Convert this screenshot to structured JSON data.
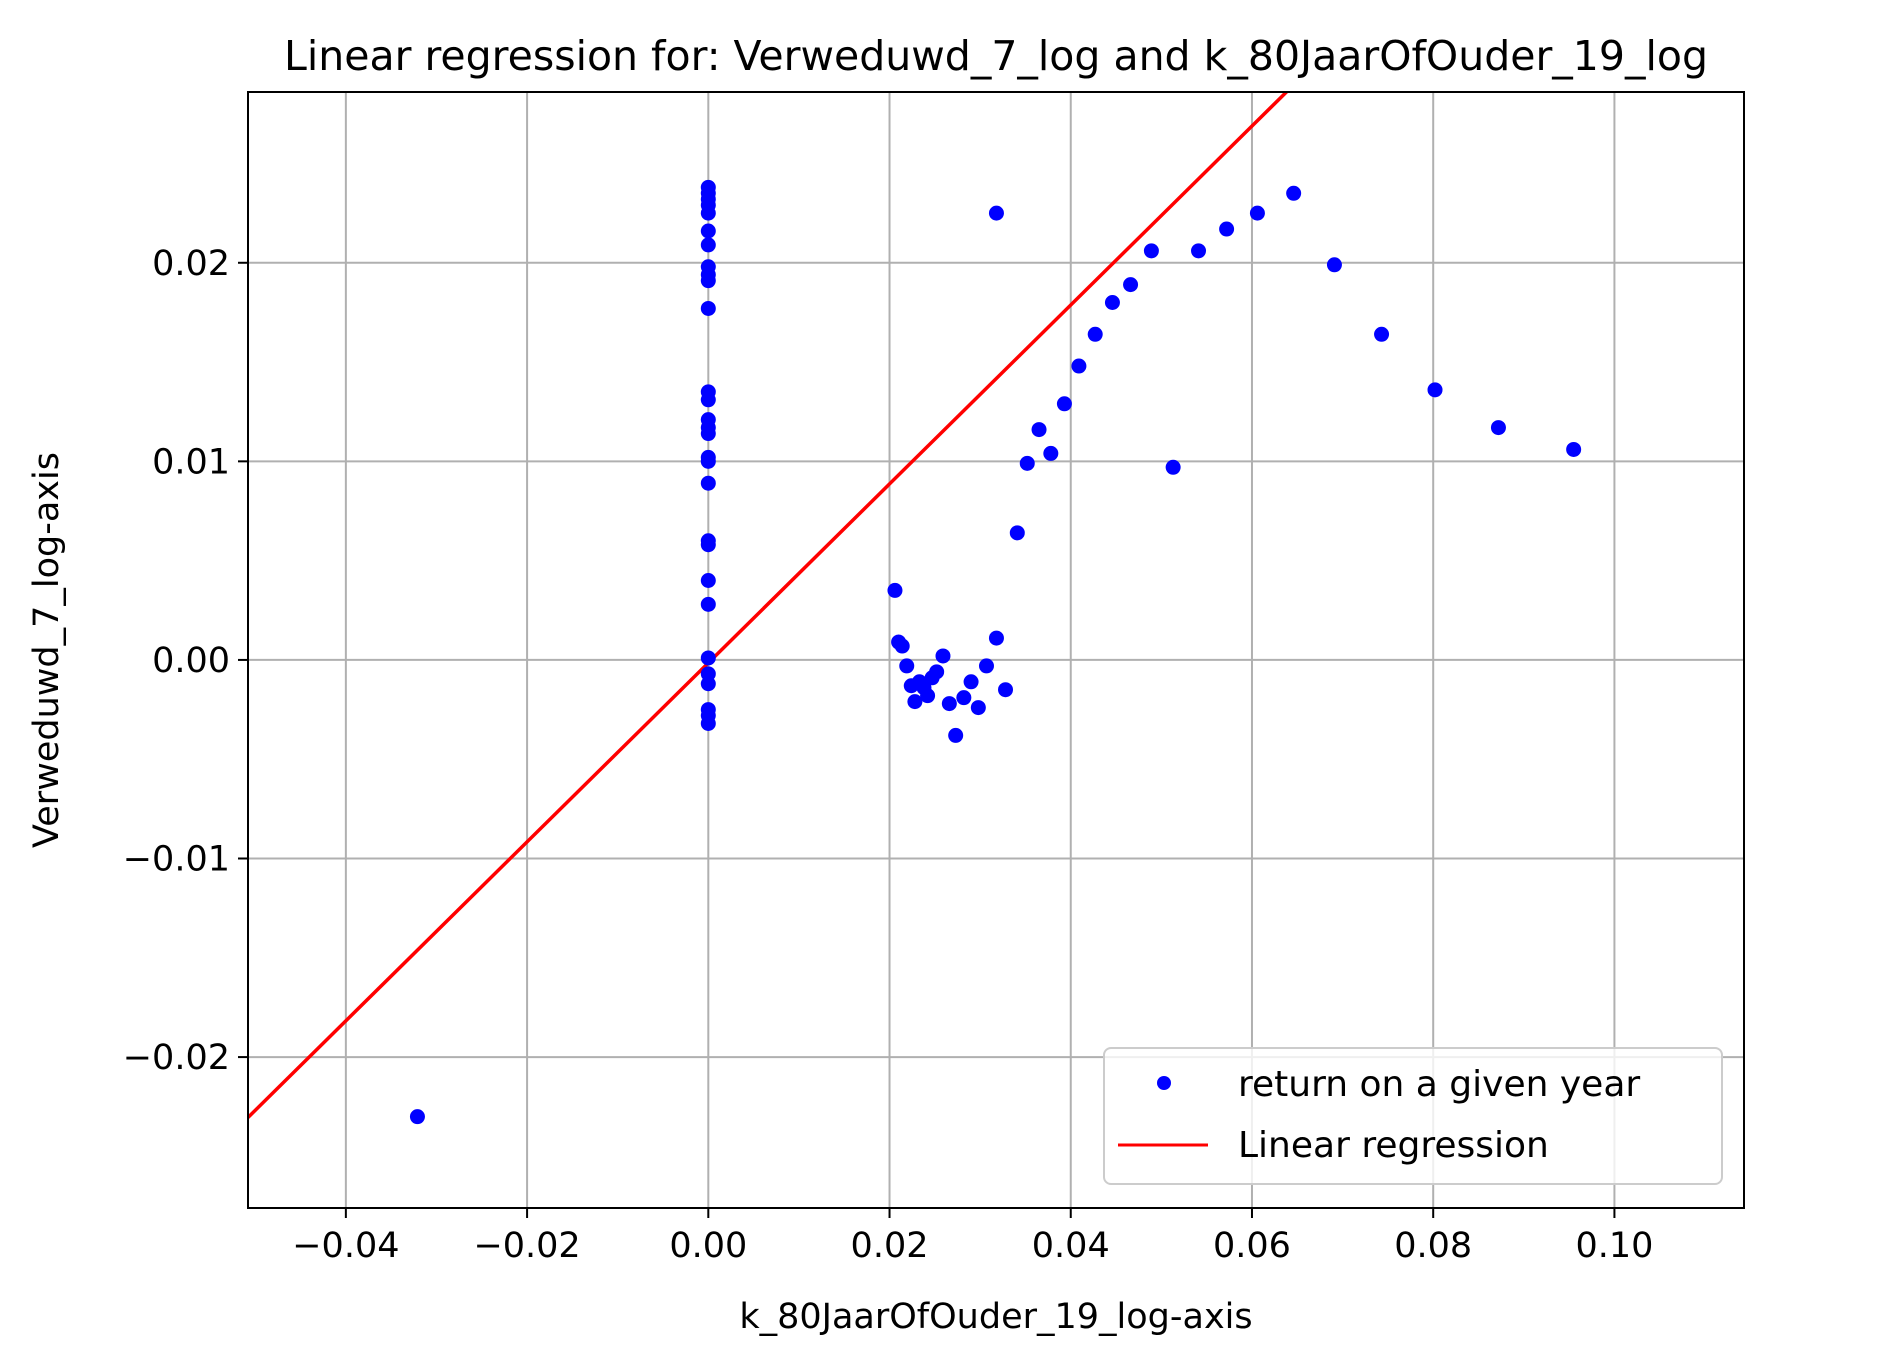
{
  "chart_data": {
    "type": "scatter",
    "title": "Linear regression for: Verweduwd_7_log and k_80JaarOfOuder_19_log",
    "xlabel": "k_80JaarOfOuder_19_log-axis",
    "ylabel": "Verweduwd_7_log-axis",
    "xlim": [
      -0.0508,
      0.1143
    ],
    "ylim": [
      -0.0276,
      0.0286
    ],
    "x_ticks": [
      -0.04,
      -0.02,
      0.0,
      0.02,
      0.04,
      0.06,
      0.08,
      0.1
    ],
    "x_tick_labels": [
      "−0.04",
      "−0.02",
      "0.00",
      "0.02",
      "0.04",
      "0.06",
      "0.08",
      "0.10"
    ],
    "y_ticks": [
      -0.02,
      -0.01,
      0.0,
      0.01,
      0.02
    ],
    "y_tick_labels": [
      "−0.02",
      "−0.01",
      "0.00",
      "0.01",
      "0.02"
    ],
    "grid": true,
    "legend_position": "lower-right",
    "series": [
      {
        "name": "return on a given year",
        "kind": "scatter",
        "color": "#0000ff",
        "points": [
          [
            0.0,
            0.0238
          ],
          [
            0.0,
            0.0235
          ],
          [
            0.0,
            0.0232
          ],
          [
            0.0,
            0.0229
          ],
          [
            0.0,
            0.0225
          ],
          [
            0.0,
            0.0216
          ],
          [
            0.0,
            0.0209
          ],
          [
            0.0,
            0.0198
          ],
          [
            0.0,
            0.0194
          ],
          [
            0.0,
            0.0191
          ],
          [
            0.0,
            0.0177
          ],
          [
            0.0,
            0.0135
          ],
          [
            0.0,
            0.0131
          ],
          [
            0.0,
            0.0121
          ],
          [
            0.0,
            0.0117
          ],
          [
            0.0,
            0.0114
          ],
          [
            0.0,
            0.0102
          ],
          [
            0.0,
            0.01
          ],
          [
            0.0,
            0.0089
          ],
          [
            0.0,
            0.006
          ],
          [
            0.0,
            0.0058
          ],
          [
            0.0,
            0.004
          ],
          [
            0.0,
            0.0028
          ],
          [
            0.0,
            0.0001
          ],
          [
            0.0,
            -0.0007
          ],
          [
            0.0,
            -0.0012
          ],
          [
            0.0,
            -0.0025
          ],
          [
            0.0,
            -0.0028
          ],
          [
            0.0,
            -0.0032
          ],
          [
            -0.0321,
            -0.023
          ],
          [
            0.0206,
            0.0035
          ],
          [
            0.021,
            0.0009
          ],
          [
            0.0214,
            0.0007
          ],
          [
            0.0219,
            -0.0003
          ],
          [
            0.0224,
            -0.0013
          ],
          [
            0.0228,
            -0.0021
          ],
          [
            0.0233,
            -0.0011
          ],
          [
            0.0238,
            -0.0014
          ],
          [
            0.0242,
            -0.0018
          ],
          [
            0.0247,
            -0.0009
          ],
          [
            0.0252,
            -0.0006
          ],
          [
            0.0259,
            0.0002
          ],
          [
            0.0266,
            -0.0022
          ],
          [
            0.0273,
            -0.0038
          ],
          [
            0.0282,
            -0.0019
          ],
          [
            0.029,
            -0.0011
          ],
          [
            0.0298,
            -0.0024
          ],
          [
            0.0307,
            -0.0003
          ],
          [
            0.0318,
            0.0011
          ],
          [
            0.0328,
            -0.0015
          ],
          [
            0.0318,
            0.0225
          ],
          [
            0.0341,
            0.0064
          ],
          [
            0.0352,
            0.0099
          ],
          [
            0.0365,
            0.0116
          ],
          [
            0.0378,
            0.0104
          ],
          [
            0.0393,
            0.0129
          ],
          [
            0.0409,
            0.0148
          ],
          [
            0.0427,
            0.0164
          ],
          [
            0.0446,
            0.018
          ],
          [
            0.0466,
            0.0189
          ],
          [
            0.0489,
            0.0206
          ],
          [
            0.0513,
            0.0097
          ],
          [
            0.0541,
            0.0206
          ],
          [
            0.0572,
            0.0217
          ],
          [
            0.0606,
            0.0225
          ],
          [
            0.0646,
            0.0235
          ],
          [
            0.0691,
            0.0199
          ],
          [
            0.0743,
            0.0164
          ],
          [
            0.0802,
            0.0136
          ],
          [
            0.0872,
            0.0117
          ],
          [
            0.0955,
            0.0106
          ]
        ]
      },
      {
        "name": "Linear regression",
        "kind": "line",
        "color": "#ff0000",
        "slope": 0.4506,
        "intercept": -0.00015
      }
    ]
  }
}
